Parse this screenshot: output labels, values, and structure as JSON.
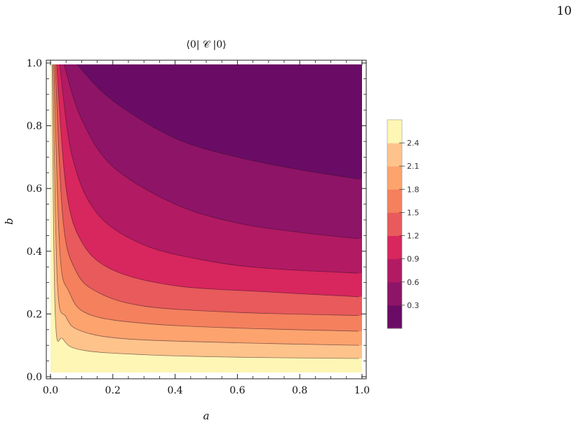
{
  "page": {
    "page_number": "10"
  },
  "chart_data": {
    "type": "contour",
    "title": "⟨0| 𝒞 |0⟩",
    "xlabel": "a",
    "ylabel": "b",
    "xlim": [
      0,
      1
    ],
    "ylim": [
      0,
      1
    ],
    "x_ticks": [
      0.0,
      0.2,
      0.4,
      0.6,
      0.8,
      1.0
    ],
    "x_tick_labels": [
      "0.0",
      "0.2",
      "0.4",
      "0.6",
      "0.8",
      "1.0"
    ],
    "y_ticks": [
      0.0,
      0.2,
      0.4,
      0.6,
      0.8,
      1.0
    ],
    "y_tick_labels": [
      "0.0",
      "0.2",
      "0.4",
      "0.6",
      "0.8",
      "1.0"
    ],
    "contour_levels": [
      0.3,
      0.6,
      0.9,
      1.2,
      1.5,
      1.8,
      2.1,
      2.4
    ],
    "band_colors": [
      "#6a0c65",
      "#8e1468",
      "#b21a64",
      "#d8265e",
      "#e85a5c",
      "#f4805e",
      "#fca36e",
      "#fec38b",
      "#fdf6b4"
    ],
    "colorbar": {
      "labels": [
        "0.3",
        "0.6",
        "0.9",
        "1.2",
        "1.5",
        "1.8",
        "2.1",
        "2.4"
      ]
    },
    "contour_lines": [
      {
        "level": 0.3,
        "points": [
          [
            0.09,
            0.99
          ],
          [
            0.2,
            0.88
          ],
          [
            0.4,
            0.76
          ],
          [
            0.6,
            0.7
          ],
          [
            0.8,
            0.66
          ],
          [
            0.99,
            0.63
          ]
        ]
      },
      {
        "level": 0.6,
        "points": [
          [
            0.045,
            0.99
          ],
          [
            0.1,
            0.82
          ],
          [
            0.2,
            0.67
          ],
          [
            0.4,
            0.55
          ],
          [
            0.6,
            0.49
          ],
          [
            0.8,
            0.46
          ],
          [
            0.99,
            0.44
          ]
        ]
      },
      {
        "level": 0.9,
        "points": [
          [
            0.03,
            0.99
          ],
          [
            0.07,
            0.7
          ],
          [
            0.15,
            0.52
          ],
          [
            0.3,
            0.42
          ],
          [
            0.5,
            0.37
          ],
          [
            0.7,
            0.345
          ],
          [
            0.99,
            0.33
          ]
        ]
      },
      {
        "level": 1.2,
        "points": [
          [
            0.02,
            0.99
          ],
          [
            0.05,
            0.6
          ],
          [
            0.1,
            0.43
          ],
          [
            0.2,
            0.34
          ],
          [
            0.4,
            0.29
          ],
          [
            0.7,
            0.27
          ],
          [
            0.99,
            0.255
          ]
        ]
      },
      {
        "level": 1.5,
        "points": [
          [
            0.015,
            0.99
          ],
          [
            0.04,
            0.5
          ],
          [
            0.08,
            0.34
          ],
          [
            0.15,
            0.27
          ],
          [
            0.3,
            0.225
          ],
          [
            0.6,
            0.205
          ],
          [
            0.99,
            0.195
          ]
        ]
      },
      {
        "level": 1.8,
        "points": [
          [
            0.011,
            0.99
          ],
          [
            0.03,
            0.4
          ],
          [
            0.06,
            0.27
          ],
          [
            0.12,
            0.2
          ],
          [
            0.3,
            0.17
          ],
          [
            0.6,
            0.155
          ],
          [
            0.99,
            0.145
          ]
        ]
      },
      {
        "level": 2.1,
        "points": [
          [
            0.008,
            0.99
          ],
          [
            0.022,
            0.3
          ],
          [
            0.05,
            0.19
          ],
          [
            0.1,
            0.145
          ],
          [
            0.25,
            0.12
          ],
          [
            0.6,
            0.108
          ],
          [
            0.99,
            0.1
          ]
        ]
      },
      {
        "level": 2.4,
        "points": [
          [
            0.005,
            0.99
          ],
          [
            0.015,
            0.2
          ],
          [
            0.04,
            0.12
          ],
          [
            0.1,
            0.085
          ],
          [
            0.3,
            0.07
          ],
          [
            0.6,
            0.062
          ],
          [
            0.99,
            0.058
          ]
        ]
      }
    ]
  }
}
